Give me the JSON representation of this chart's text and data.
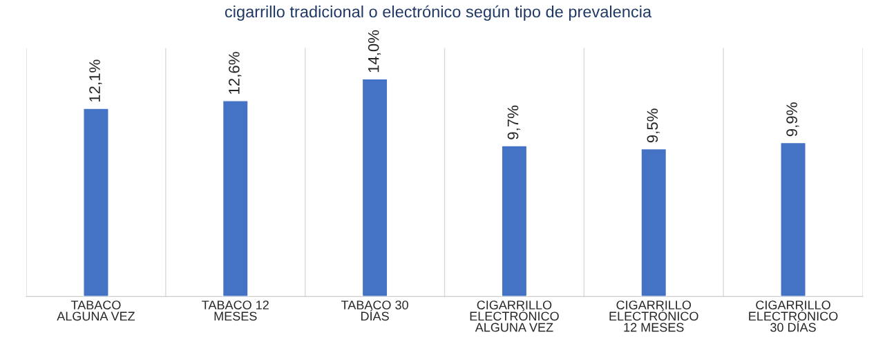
{
  "chart_data": {
    "type": "bar",
    "title": "cigarrillo tradicional o electrónico según tipo de prevalencia",
    "categories": [
      "TABACO\nALGUNA VEZ",
      "TABACO 12\nMESES",
      "TABACO 30\nDÍAS",
      "CIGARRILLO\nELECTRÓNICO\nALGUNA VEZ",
      "CIGARRILLO\nELECTRÓNICO\n12 MESES",
      "CIGARRILLO\nELECTRÓNICO\n30 DÍAS"
    ],
    "values": [
      12.1,
      12.6,
      14.0,
      9.7,
      9.5,
      9.9
    ],
    "value_labels": [
      "12,1%",
      "12,6%",
      "14,0%",
      "9,7%",
      "9,5%",
      "9,9%"
    ],
    "color": "#4472c4",
    "ylim": [
      0,
      16
    ],
    "tick_labels": "x",
    "grid": "x"
  }
}
